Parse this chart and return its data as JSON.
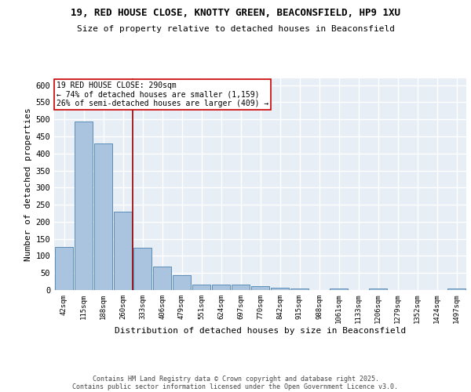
{
  "title_line1": "19, RED HOUSE CLOSE, KNOTTY GREEN, BEACONSFIELD, HP9 1XU",
  "title_line2": "Size of property relative to detached houses in Beaconsfield",
  "xlabel": "Distribution of detached houses by size in Beaconsfield",
  "ylabel": "Number of detached properties",
  "categories": [
    "42sqm",
    "115sqm",
    "188sqm",
    "260sqm",
    "333sqm",
    "406sqm",
    "479sqm",
    "551sqm",
    "624sqm",
    "697sqm",
    "770sqm",
    "842sqm",
    "915sqm",
    "988sqm",
    "1061sqm",
    "1133sqm",
    "1206sqm",
    "1279sqm",
    "1352sqm",
    "1424sqm",
    "1497sqm"
  ],
  "values": [
    127,
    493,
    430,
    230,
    125,
    68,
    44,
    16,
    16,
    15,
    11,
    6,
    5,
    0,
    5,
    0,
    5,
    0,
    0,
    0,
    4
  ],
  "bar_color": "#aac4e0",
  "bar_edge_color": "#5b8db8",
  "background_color": "#e8eef6",
  "grid_color": "#ffffff",
  "red_line_x": 3.5,
  "annotation_text_line1": "19 RED HOUSE CLOSE: 290sqm",
  "annotation_text_line2": "← 74% of detached houses are smaller (1,159)",
  "annotation_text_line3": "26% of semi-detached houses are larger (409) →",
  "annotation_box_color": "#ffffff",
  "annotation_box_edge": "#cc0000",
  "vline_color": "#990000",
  "footer_line1": "Contains HM Land Registry data © Crown copyright and database right 2025.",
  "footer_line2": "Contains public sector information licensed under the Open Government Licence v3.0.",
  "ylim_max": 620,
  "yticks": [
    0,
    50,
    100,
    150,
    200,
    250,
    300,
    350,
    400,
    450,
    500,
    550,
    600
  ]
}
